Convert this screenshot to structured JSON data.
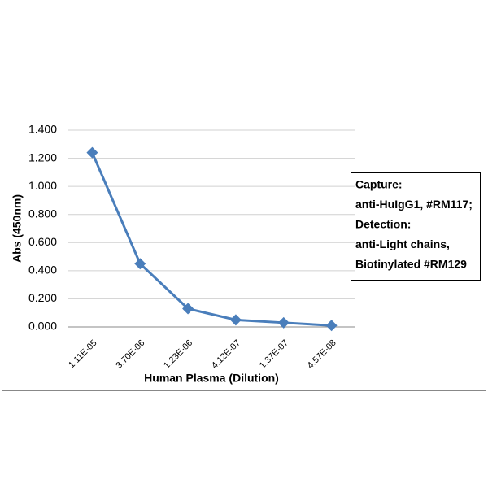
{
  "chart_data": {
    "type": "line",
    "x_label": "Human Plasma (Dilution)",
    "y_label": "Abs (450nm)",
    "categories": [
      "1.11E-05",
      "3.70E-06",
      "1.23E-06",
      "4.12E-07",
      "1.37E-07",
      "4.57E-08"
    ],
    "series": [
      {
        "name": "Abs",
        "color": "#4a7ebb",
        "values": [
          1.24,
          0.45,
          0.13,
          0.05,
          0.03,
          0.01
        ]
      }
    ],
    "ylim": [
      0,
      1.4
    ],
    "yticks": [
      {
        "value": 0,
        "label": "0.000"
      },
      {
        "value": 0.2,
        "label": "0.200"
      },
      {
        "value": 0.4,
        "label": "0.400"
      },
      {
        "value": 0.6,
        "label": "0.600"
      },
      {
        "value": 0.8,
        "label": "0.800"
      },
      {
        "value": 1.0,
        "label": "1.000"
      },
      {
        "value": 1.2,
        "label": "1.200"
      },
      {
        "value": 1.4,
        "label": "1.400"
      }
    ],
    "grid": true,
    "annotation": [
      "Capture:",
      "anti-HuIgG1, #RM117;",
      "Detection:",
      "anti-Light chains,",
      "Biotinylated #RM129"
    ]
  }
}
